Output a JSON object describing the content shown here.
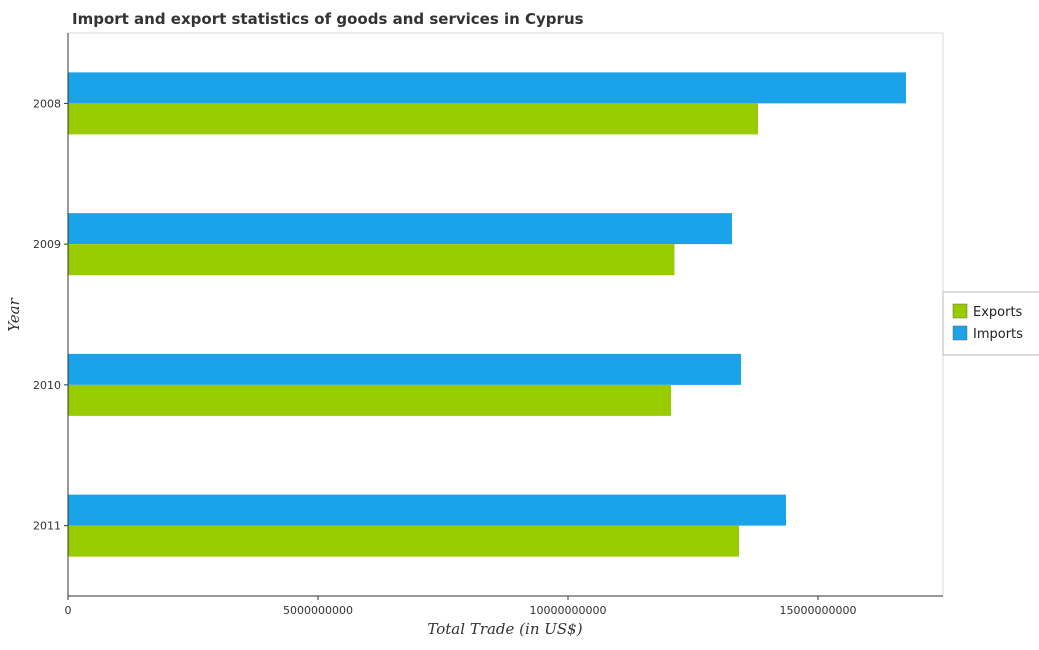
{
  "chart_data": {
    "type": "bar",
    "orientation": "horizontal",
    "title": "Import and export statistics of goods and services in Cyprus",
    "xlabel": "Total Trade (in US$)",
    "ylabel": "Year",
    "categories": [
      "2008",
      "2009",
      "2010",
      "2011"
    ],
    "series": [
      {
        "name": "Exports",
        "color": "#99cc00",
        "values": [
          13800000000,
          12130000000,
          12060000000,
          13420000000
        ]
      },
      {
        "name": "Imports",
        "color": "#1aa3e8",
        "values": [
          16760000000,
          13280000000,
          13460000000,
          14360000000
        ]
      }
    ],
    "xlim": [
      0,
      17500000000
    ],
    "xticks": [
      0,
      5000000000,
      10000000000,
      15000000000
    ],
    "xtick_labels": [
      "0",
      "5000000000",
      "10000000000",
      "15000000000"
    ],
    "grid": false,
    "legend_position": "right"
  }
}
